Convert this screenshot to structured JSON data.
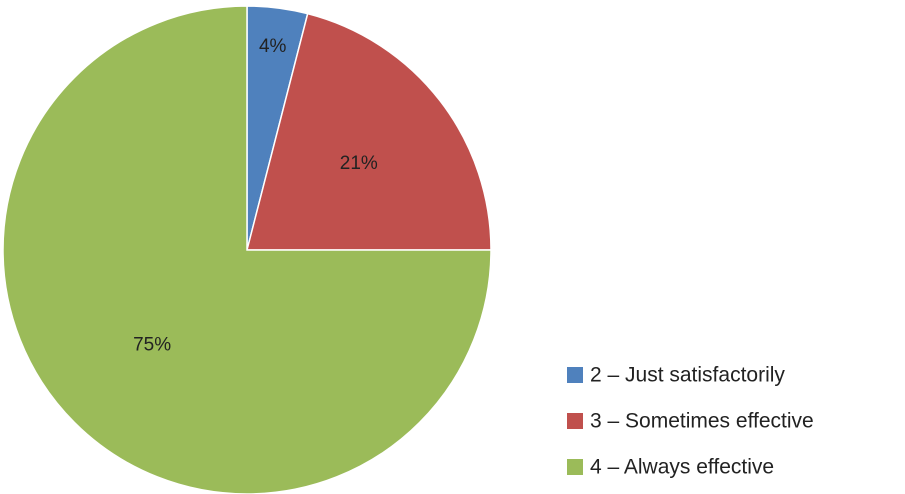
{
  "chart_data": {
    "type": "pie",
    "title": "",
    "legend_position": "bottom-right",
    "start_angle": "top, clockwise",
    "slices": [
      {
        "label": "2 – Just satisfactorily",
        "value": 4,
        "display": "4%",
        "color": "#4F81BD"
      },
      {
        "label": "3 – Sometimes effective",
        "value": 21,
        "display": "21%",
        "color": "#C0504D"
      },
      {
        "label": "4 – Always effective",
        "value": 75,
        "display": "75%",
        "color": "#9BBB59"
      }
    ]
  }
}
